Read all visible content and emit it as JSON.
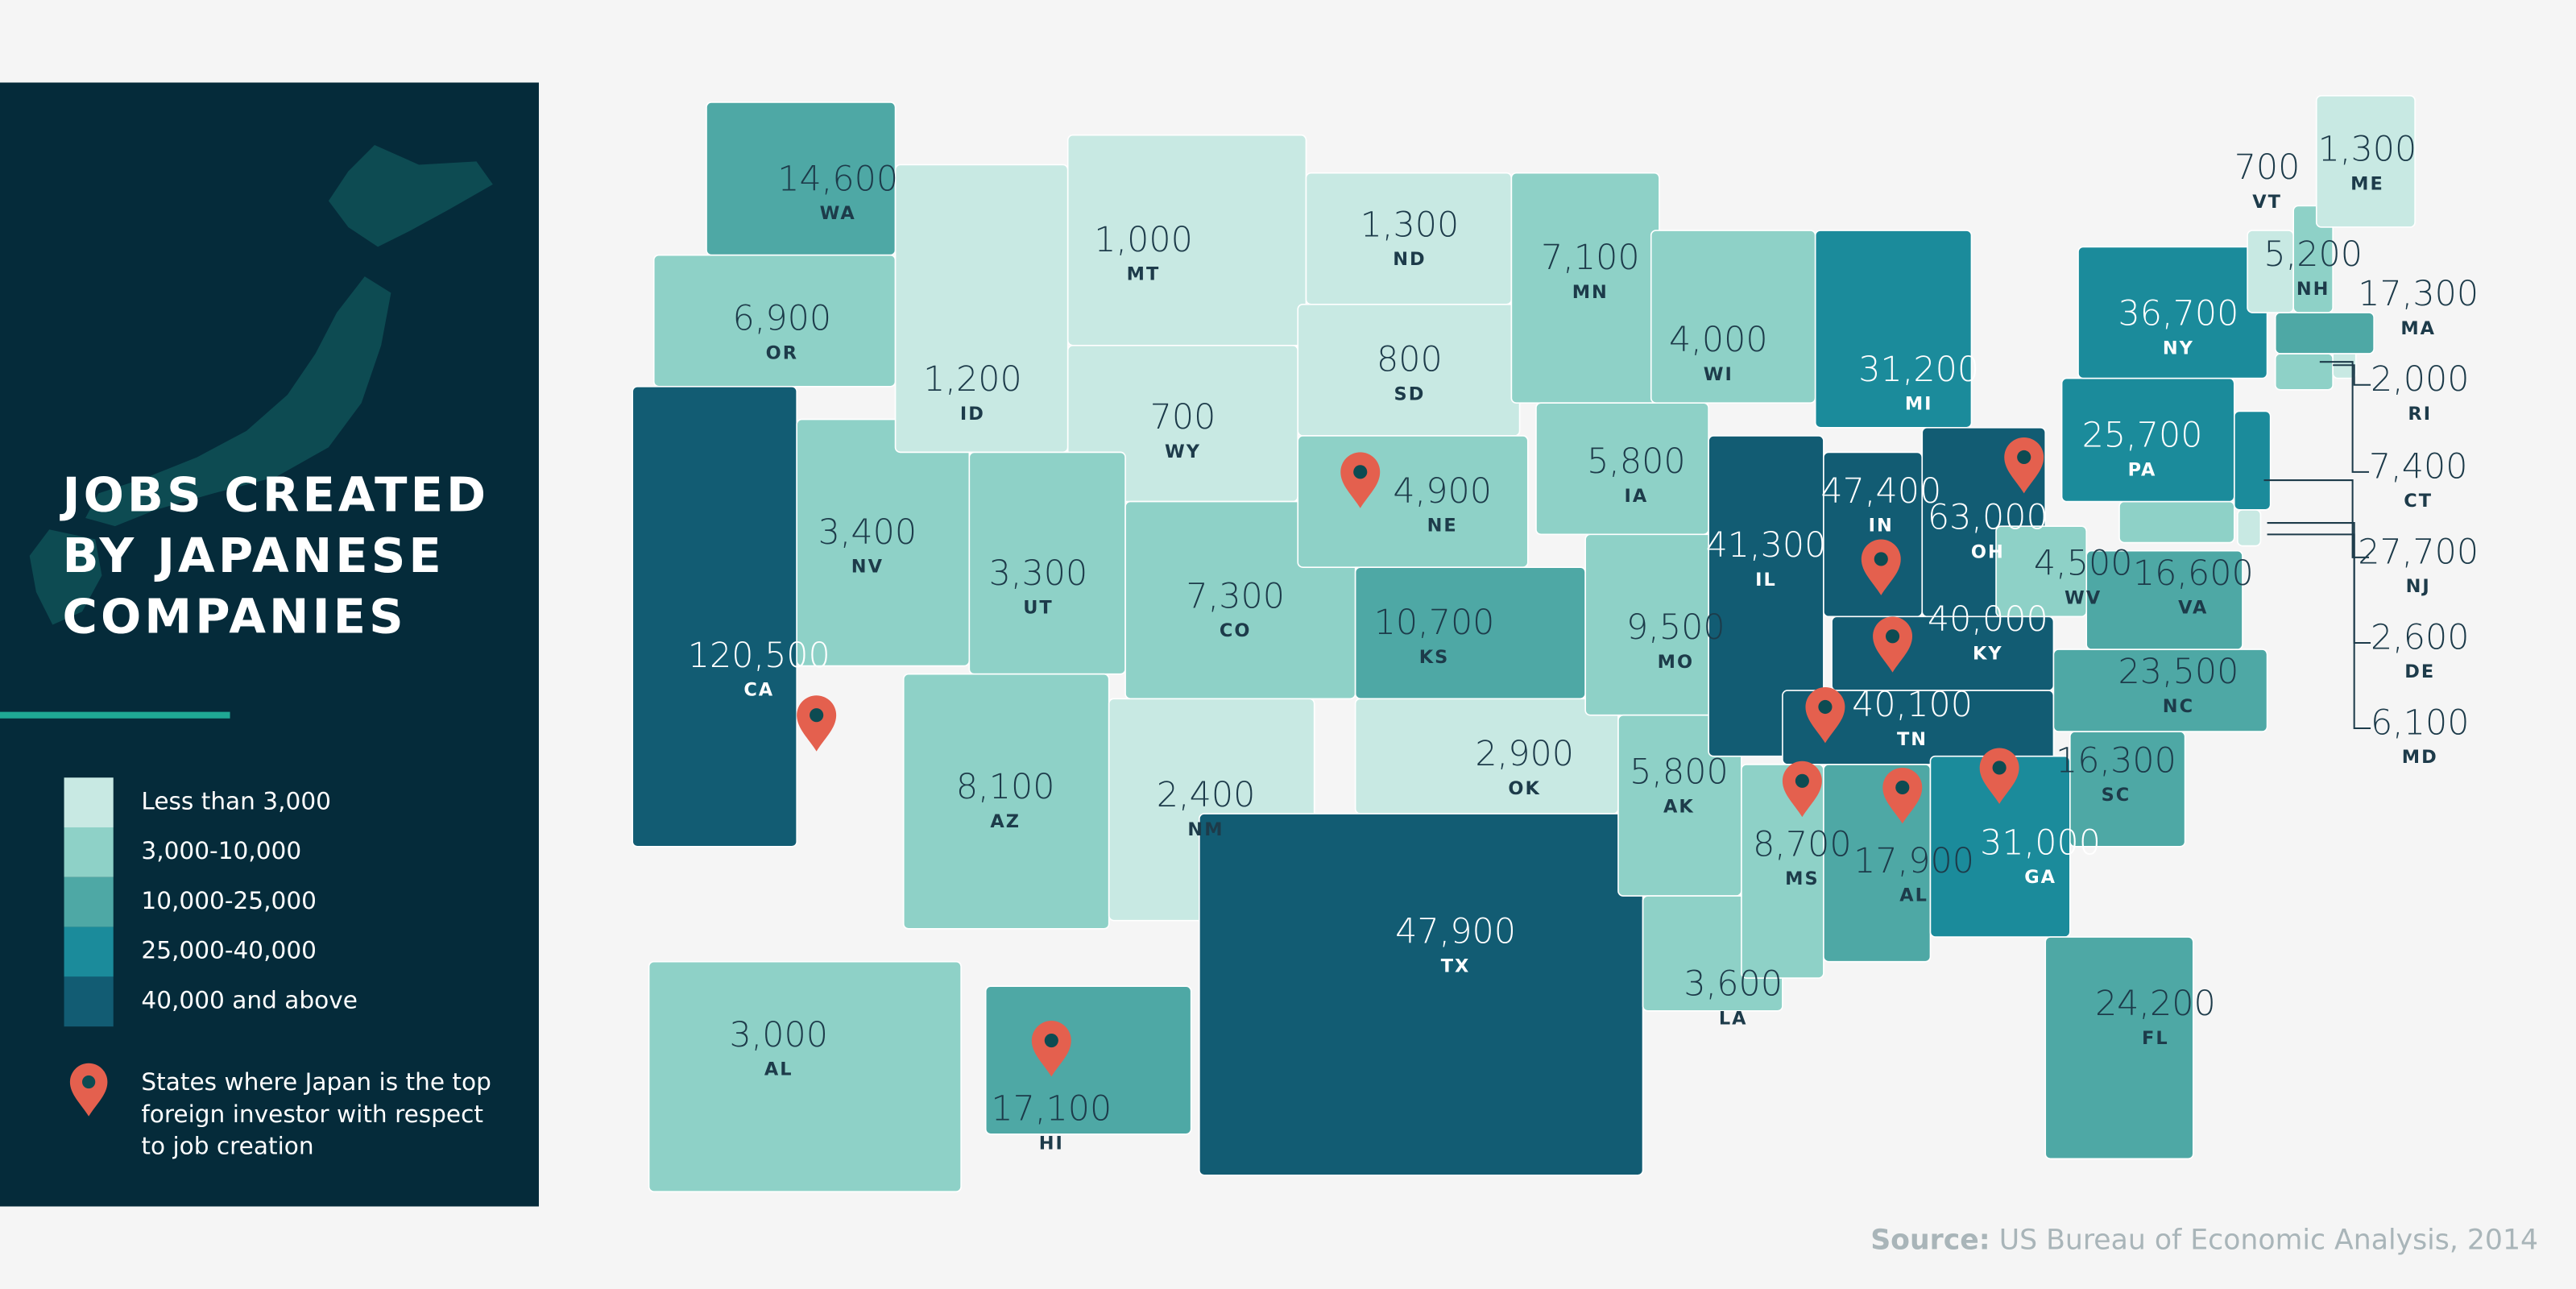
{
  "title_lines": [
    "JOBS CREATED",
    "BY JAPANESE",
    "COMPANIES"
  ],
  "legend": [
    {
      "label": "Less than 3,000",
      "color": "#c8e9e3"
    },
    {
      "label": "3,000-10,000",
      "color": "#8ed1c7",
      "min": 3000
    },
    {
      "label": "10,000-25,000",
      "color": "#4ea8a5",
      "min": 10000
    },
    {
      "label": "25,000-40,000",
      "color": "#1b8b9b",
      "min": 25000
    },
    {
      "label": "40,000 and above",
      "color": "#125c73",
      "min": 40000
    }
  ],
  "pin_legend": [
    "States where Japan is the top",
    "foreign investor with respect",
    "to job creation"
  ],
  "pin_color": "#e4604e",
  "states": [
    {
      "abbr": "WA",
      "value": 14600,
      "label": "14,600"
    },
    {
      "abbr": "OR",
      "value": 6900,
      "label": "6,900"
    },
    {
      "abbr": "CA",
      "value": 120500,
      "label": "120,500",
      "pin": true
    },
    {
      "abbr": "NV",
      "value": 3400,
      "label": "3,400"
    },
    {
      "abbr": "ID",
      "value": 1200,
      "label": "1,200"
    },
    {
      "abbr": "MT",
      "value": 1000,
      "label": "1,000"
    },
    {
      "abbr": "WY",
      "value": 700,
      "label": "700"
    },
    {
      "abbr": "UT",
      "value": 3300,
      "label": "3,300"
    },
    {
      "abbr": "AZ",
      "value": 8100,
      "label": "8,100"
    },
    {
      "abbr": "CO",
      "value": 7300,
      "label": "7,300"
    },
    {
      "abbr": "NM",
      "value": 2400,
      "label": "2,400"
    },
    {
      "abbr": "ND",
      "value": 1300,
      "label": "1,300"
    },
    {
      "abbr": "SD",
      "value": 800,
      "label": "800"
    },
    {
      "abbr": "NE",
      "value": 4900,
      "label": "4,900",
      "pin": true
    },
    {
      "abbr": "KS",
      "value": 10700,
      "label": "10,700"
    },
    {
      "abbr": "OK",
      "value": 2900,
      "label": "2,900"
    },
    {
      "abbr": "TX",
      "value": 47900,
      "label": "47,900"
    },
    {
      "abbr": "MN",
      "value": 7100,
      "label": "7,100"
    },
    {
      "abbr": "IA",
      "value": 5800,
      "label": "5,800"
    },
    {
      "abbr": "MO",
      "value": 9500,
      "label": "9,500"
    },
    {
      "abbr": "AK",
      "value": 5800,
      "label": "5,800"
    },
    {
      "abbr": "LA",
      "value": 3600,
      "label": "3,600"
    },
    {
      "abbr": "WI",
      "value": 4000,
      "label": "4,000"
    },
    {
      "abbr": "IL",
      "value": 41300,
      "label": "41,300"
    },
    {
      "abbr": "MI",
      "value": 31200,
      "label": "31,200"
    },
    {
      "abbr": "IN",
      "value": 47400,
      "label": "47,400",
      "pin": true
    },
    {
      "abbr": "OH",
      "value": 63000,
      "label": "63,000",
      "pin": true
    },
    {
      "abbr": "KY",
      "value": 40000,
      "label": "40,000",
      "pin": true
    },
    {
      "abbr": "TN",
      "value": 40100,
      "label": "40,100",
      "pin": true
    },
    {
      "abbr": "MS",
      "value": 8700,
      "label": "8,700",
      "pin": true
    },
    {
      "abbr": "AL",
      "value": 17900,
      "label": "17,900",
      "pin": true
    },
    {
      "abbr": "GA",
      "value": 31000,
      "label": "31,000",
      "pin": true
    },
    {
      "abbr": "FL",
      "value": 24200,
      "label": "24,200"
    },
    {
      "abbr": "SC",
      "value": 16300,
      "label": "16,300"
    },
    {
      "abbr": "NC",
      "value": 23500,
      "label": "23,500"
    },
    {
      "abbr": "VA",
      "value": 16600,
      "label": "16,600"
    },
    {
      "abbr": "WV",
      "value": 4500,
      "label": "4,500"
    },
    {
      "abbr": "MD",
      "value": 6100,
      "label": "6,100"
    },
    {
      "abbr": "DE",
      "value": 2600,
      "label": "2,600"
    },
    {
      "abbr": "NJ",
      "value": 27700,
      "label": "27,700"
    },
    {
      "abbr": "PA",
      "value": 25700,
      "label": "25,700"
    },
    {
      "abbr": "NY",
      "value": 36700,
      "label": "36,700"
    },
    {
      "abbr": "CT",
      "value": 7400,
      "label": "7,400"
    },
    {
      "abbr": "RI",
      "value": 2000,
      "label": "2,000"
    },
    {
      "abbr": "MA",
      "value": 17300,
      "label": "17,300"
    },
    {
      "abbr": "VT",
      "value": 700,
      "label": "700"
    },
    {
      "abbr": "NH",
      "value": 5200,
      "label": "5,200"
    },
    {
      "abbr": "ME",
      "value": 1300,
      "label": "1,300"
    },
    {
      "abbr": "AL",
      "value": 3000,
      "label": "3,000"
    },
    {
      "abbr": "HI",
      "value": 17100,
      "label": "17,100",
      "pin": true
    }
  ],
  "source": {
    "label": "Source:",
    "text": "US Bureau of Economic Analysis, 2014"
  }
}
